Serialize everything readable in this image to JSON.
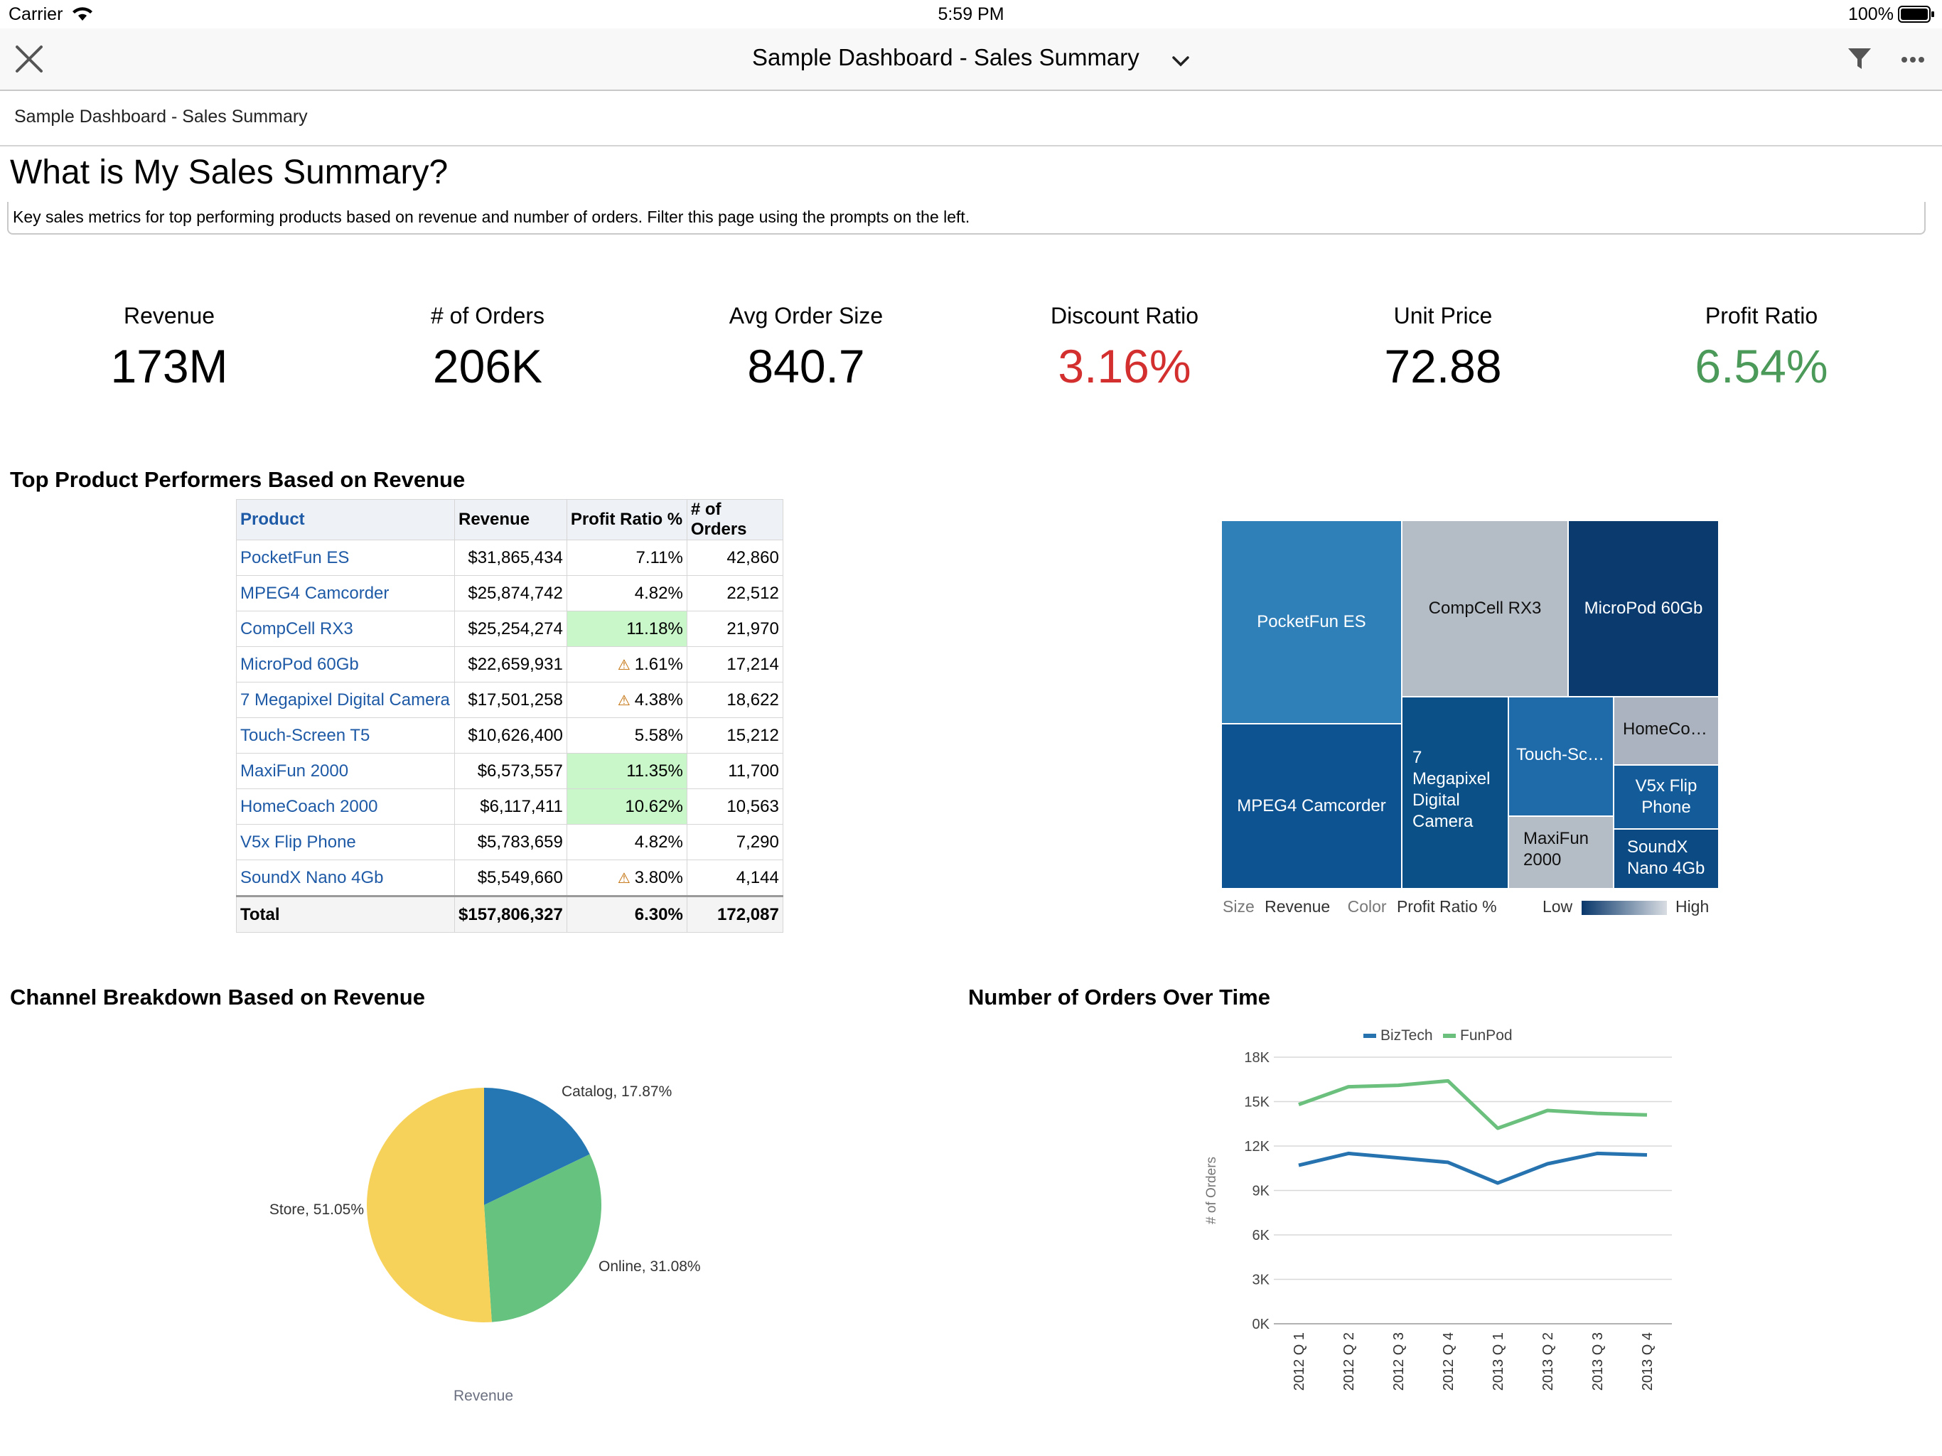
{
  "status_bar": {
    "carrier": "Carrier",
    "time": "5:59 PM",
    "battery": "100%"
  },
  "nav": {
    "title": "Sample Dashboard - Sales Summary"
  },
  "breadcrumb": "Sample Dashboard - Sales Summary",
  "page": {
    "title": "What is My Sales Summary?",
    "description": "Key sales metrics for top performing products based on revenue and number of orders. Filter this page using the prompts on the left."
  },
  "kpis": [
    {
      "label": "Revenue",
      "value": "173M",
      "color": "#000000"
    },
    {
      "label": "# of Orders",
      "value": "206K",
      "color": "#000000"
    },
    {
      "label": "Avg Order Size",
      "value": "840.7",
      "color": "#000000"
    },
    {
      "label": "Discount Ratio",
      "value": "3.16%",
      "color": "#d32f2f"
    },
    {
      "label": "Unit Price",
      "value": "72.88",
      "color": "#000000"
    },
    {
      "label": "Profit Ratio",
      "value": "6.54%",
      "color": "#4c9a5a"
    }
  ],
  "performers": {
    "title": "Top Product Performers Based on Revenue",
    "columns": [
      "Product",
      "Revenue",
      "Profit Ratio %",
      "# of Orders"
    ],
    "rows": [
      {
        "product": "PocketFun ES",
        "revenue": "$31,865,434",
        "profit": "7.11%",
        "orders": "42,860"
      },
      {
        "product": "MPEG4 Camcorder",
        "revenue": "$25,874,742",
        "profit": "4.82%",
        "orders": "22,512"
      },
      {
        "product": "CompCell RX3",
        "revenue": "$25,254,274",
        "profit": "11.18%",
        "orders": "21,970"
      },
      {
        "product": "MicroPod 60Gb",
        "revenue": "$22,659,931",
        "profit": "1.61%",
        "orders": "17,214"
      },
      {
        "product": "7 Megapixel Digital Camera",
        "revenue": "$17,501,258",
        "profit": "4.38%",
        "orders": "18,622"
      },
      {
        "product": "Touch-Screen T5",
        "revenue": "$10,626,400",
        "profit": "5.58%",
        "orders": "15,212"
      },
      {
        "product": "MaxiFun 2000",
        "revenue": "$6,573,557",
        "profit": "11.35%",
        "orders": "11,700"
      },
      {
        "product": "HomeCoach 2000",
        "revenue": "$6,117,411",
        "profit": "10.62%",
        "orders": "10,563"
      },
      {
        "product": "V5x Flip Phone",
        "revenue": "$5,783,659",
        "profit": "4.82%",
        "orders": "7,290"
      },
      {
        "product": "SoundX Nano 4Gb",
        "revenue": "$5,549,660",
        "profit": "3.80%",
        "orders": "4,144"
      }
    ],
    "total": {
      "label": "Total",
      "revenue": "$157,806,327",
      "profit": "6.30%",
      "orders": "172,087"
    }
  },
  "treemap": {
    "tiles": {
      "pocketfun": "PocketFun ES",
      "compcell": "CompCell RX3",
      "micropod": "MicroPod 60Gb",
      "mpeg4": "MPEG4 Camcorder",
      "megapixel": "7 Megapixel Digital Camera",
      "touch": "Touch-Sc…",
      "homeco": "HomeCo…",
      "v5x": "V5x Flip Phone",
      "maxifun": "MaxiFun 2000",
      "soundx": "SoundX Nano 4Gb"
    },
    "legend": {
      "size_label": "Size",
      "size_value": "Revenue",
      "color_label": "Color",
      "color_value": "Profit Ratio %",
      "low": "Low",
      "high": "High"
    }
  },
  "chart_data": [
    {
      "type": "pie",
      "title": "Channel Breakdown Based on Revenue",
      "xlabel": "Revenue",
      "labels": [
        "Catalog",
        "Online",
        "Store"
      ],
      "slice_labels": [
        "Catalog, 17.87%",
        "Online, 31.08%",
        "Store, 51.05%"
      ],
      "values": [
        17.87,
        31.08,
        51.05
      ],
      "colors": [
        "#2477b3",
        "#66c27f",
        "#f7d25a"
      ]
    },
    {
      "type": "line",
      "title": "Number of Orders Over Time",
      "ylabel": "# of Orders",
      "x": [
        "2012 Q 1",
        "2012 Q 2",
        "2012 Q 3",
        "2012 Q 4",
        "2013 Q 1",
        "2013 Q 2",
        "2013 Q 3",
        "2013 Q 4"
      ],
      "ylim": [
        0,
        18000
      ],
      "yticks": [
        "0K",
        "3K",
        "6K",
        "9K",
        "12K",
        "15K",
        "18K"
      ],
      "legend_position": "top",
      "series": [
        {
          "name": "BizTech",
          "color": "#2673b0",
          "values": [
            10700,
            11500,
            11200,
            10900,
            9500,
            10800,
            11500,
            11400
          ]
        },
        {
          "name": "FunPod",
          "color": "#6cc07e",
          "values": [
            14800,
            16000,
            16100,
            16400,
            13200,
            14400,
            14200,
            14100
          ]
        }
      ]
    }
  ]
}
